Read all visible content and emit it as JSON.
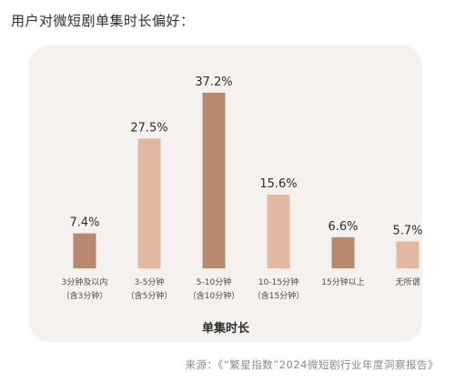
{
  "heading": "用户对微短剧单集时长偏好：",
  "source": "来源：《“繁星指数”2024微短剧行业年度洞察报告》",
  "colors": {
    "dark": "#b98870",
    "light": "#e3b7a2",
    "panel": "#f4f1ef"
  },
  "chart_data": {
    "type": "bar",
    "xlabel": "单集时长",
    "ylabel": "",
    "ylim": [
      0,
      40
    ],
    "grid": false,
    "categories": [
      {
        "label": "3分钟及以内",
        "sublabel": "（含3分钟）",
        "value": 7.4,
        "value_label": "7.4%",
        "shade": "dark"
      },
      {
        "label": "3-5分钟",
        "sublabel": "（含5分钟）",
        "value": 27.5,
        "value_label": "27.5%",
        "shade": "light"
      },
      {
        "label": "5-10分钟",
        "sublabel": "（含10分钟）",
        "value": 37.2,
        "value_label": "37.2%",
        "shade": "dark"
      },
      {
        "label": "10-15分钟",
        "sublabel": "（含15分钟）",
        "value": 15.6,
        "value_label": "15.6%",
        "shade": "light"
      },
      {
        "label": "15分钟以上",
        "sublabel": "",
        "value": 6.6,
        "value_label": "6.6%",
        "shade": "dark"
      },
      {
        "label": "无所谓",
        "sublabel": "",
        "value": 5.7,
        "value_label": "5.7%",
        "shade": "light"
      }
    ]
  }
}
